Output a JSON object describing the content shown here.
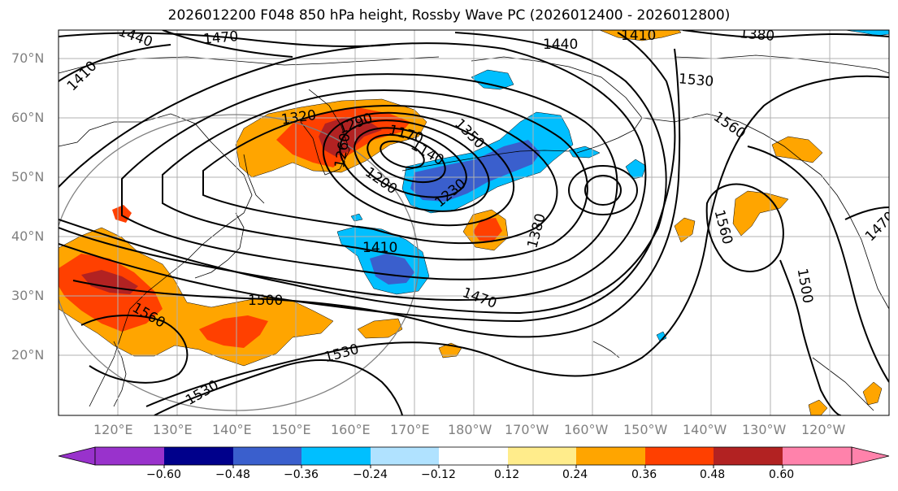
{
  "title": "2026012200 F048 850 hPa height, Rossby Wave PC (2026012400 - 2026012800)",
  "lat_labels": [
    "70°N",
    "60°N",
    "50°N",
    "40°N",
    "30°N",
    "20°N"
  ],
  "lon_labels": [
    "120°E",
    "130°E",
    "140°E",
    "150°E",
    "160°E",
    "170°E",
    "180°W",
    "170°W",
    "160°W",
    "150°W",
    "140°W",
    "130°W",
    "120°W"
  ],
  "contour_labels": [
    "1440",
    "1470",
    "1410",
    "1320",
    "1290",
    "1260",
    "1170",
    "1140",
    "1200",
    "1230",
    "1350",
    "1380",
    "1410",
    "1440",
    "1530",
    "1560",
    "1500",
    "1470",
    "1560",
    "1530",
    "1530",
    "1410",
    "1380",
    "1560",
    "1500",
    "1470"
  ],
  "colorbar": {
    "ticks": [
      "−0.60",
      "−0.48",
      "−0.36",
      "−0.24",
      "−0.12",
      "0.12",
      "0.24",
      "0.36",
      "0.48",
      "0.60"
    ],
    "colors": [
      "#9932cc",
      "#00008b",
      "#3a5fcd",
      "#00bfff",
      "#b0e2ff",
      "#ffffff",
      "#ffec8b",
      "#ffa500",
      "#ff4000",
      "#b22222",
      "#ff82ab"
    ]
  },
  "fills": {
    "neg_strong": "#3a5fcd",
    "neg_mid": "#00bfff",
    "pos_mid": "#ffa500",
    "pos_strong": "#ff4000",
    "pos_extreme": "#b22222"
  }
}
